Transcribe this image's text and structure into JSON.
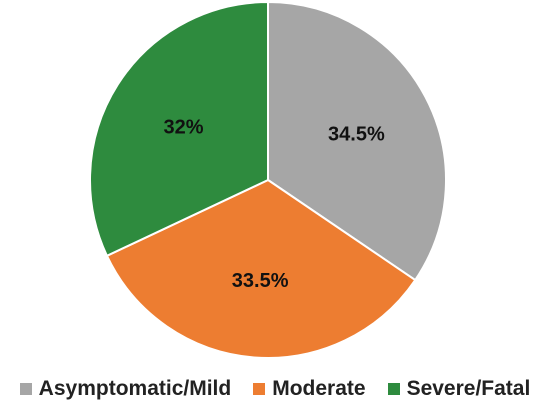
{
  "chart_data": {
    "type": "pie",
    "categories": [
      "Asymptomatic/Mild",
      "Moderate",
      "Severe/Fatal"
    ],
    "values": [
      34.5,
      33.5,
      32
    ],
    "labels": [
      "34.5%",
      "33.5%",
      "32%"
    ],
    "colors": [
      "#a6a6a6",
      "#ed7d31",
      "#2e8b3e"
    ],
    "legend_position": "bottom"
  }
}
